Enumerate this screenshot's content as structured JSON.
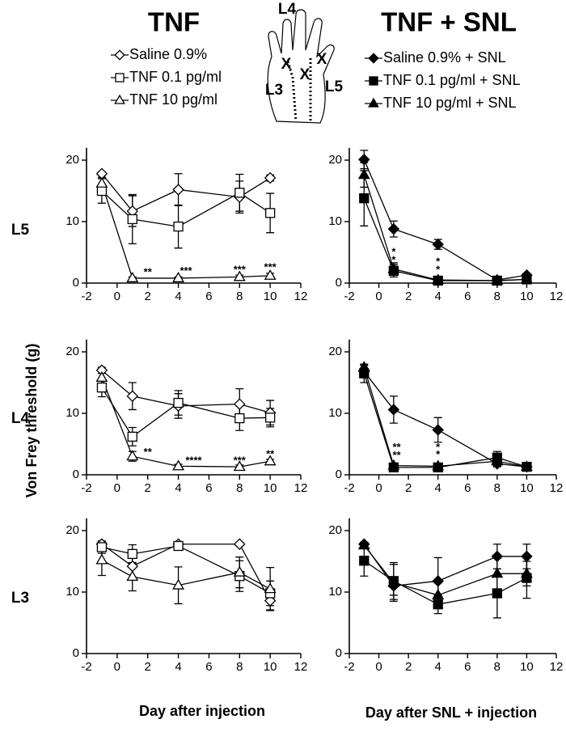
{
  "columns": [
    {
      "title": "TNF",
      "xlabel": "Day after injection",
      "series": [
        {
          "name": "Saline 0.9%",
          "marker": "diamond",
          "fill": "#ffffff"
        },
        {
          "name": "TNF 0.1 pg/ml",
          "marker": "square",
          "fill": "#ffffff"
        },
        {
          "name": "TNF 10 pg/ml",
          "marker": "triangle",
          "fill": "#ffffff"
        }
      ]
    },
    {
      "title": "TNF + SNL",
      "xlabel": "Day after SNL + injection",
      "series": [
        {
          "name": "Saline 0.9% + SNL",
          "marker": "diamond",
          "fill": "#000000"
        },
        {
          "name": "TNF 0.1 pg/ml + SNL",
          "marker": "square",
          "fill": "#000000"
        },
        {
          "name": "TNF 10 pg/ml + SNL",
          "marker": "triangle",
          "fill": "#000000"
        }
      ]
    }
  ],
  "rows": [
    "L5",
    "L4",
    "L3"
  ],
  "ylabel": "Von Frey threshold (g)",
  "paw": {
    "labels": [
      "L4",
      "L3",
      "L5"
    ],
    "marks": [
      "X",
      "X",
      "X"
    ]
  },
  "chart_data": [
    {
      "type": "line",
      "x": [
        -1,
        1,
        4,
        8,
        10
      ],
      "xlim": [
        -2,
        12
      ],
      "xticks": [
        -2,
        0,
        2,
        4,
        6,
        8,
        10,
        12
      ],
      "ylim": [
        0,
        22
      ],
      "yticks": [
        0,
        10,
        20
      ],
      "series": [
        {
          "values": [
            17.8,
            11.7,
            15.2,
            14.0,
            17.1
          ],
          "errors": [
            0.3,
            2.5,
            2.6,
            2.6,
            0.5
          ]
        },
        {
          "values": [
            15.0,
            10.4,
            9.2,
            14.7,
            11.4
          ],
          "errors": [
            2.0,
            4.0,
            3.5,
            3.0,
            3.2
          ]
        },
        {
          "values": [
            16.2,
            0.8,
            0.8,
            1.0,
            1.2
          ],
          "errors": [
            1.0,
            0.2,
            0.2,
            0.3,
            0.4
          ]
        }
      ],
      "annotations": [
        {
          "x": 2,
          "y": 1.7,
          "text": "**"
        },
        {
          "x": 4.5,
          "y": 1.9,
          "text": "***"
        },
        {
          "x": 8,
          "y": 2.1,
          "text": "***"
        },
        {
          "x": 10,
          "y": 2.5,
          "text": "***"
        }
      ]
    },
    {
      "type": "line",
      "x": [
        -1,
        1,
        4,
        8,
        10
      ],
      "xlim": [
        -2,
        12
      ],
      "xticks": [
        -2,
        0,
        2,
        4,
        6,
        8,
        10,
        12
      ],
      "ylim": [
        0,
        22
      ],
      "yticks": [
        0,
        10,
        20
      ],
      "series": [
        {
          "values": [
            20.1,
            8.8,
            6.3,
            0.5,
            1.3
          ],
          "errors": [
            1.5,
            1.3,
            0.8,
            0.2,
            0.3
          ]
        },
        {
          "values": [
            13.8,
            2.0,
            0.4,
            0.4,
            0.6
          ],
          "errors": [
            4.5,
            1.0,
            0.2,
            0.2,
            0.2
          ]
        },
        {
          "values": [
            17.6,
            2.3,
            0.5,
            0.4,
            0.6
          ],
          "errors": [
            2.0,
            1.0,
            0.2,
            0.2,
            0.2
          ]
        }
      ],
      "annotations": [
        {
          "x": 1,
          "y": 5.0,
          "text": "*"
        },
        {
          "x": 1,
          "y": 3.7,
          "text": "*"
        },
        {
          "x": 4,
          "y": 3.4,
          "text": "*"
        },
        {
          "x": 4,
          "y": 2.1,
          "text": "*"
        }
      ]
    },
    {
      "type": "line",
      "x": [
        -1,
        1,
        4,
        8,
        10
      ],
      "xlim": [
        -2,
        12
      ],
      "xticks": [
        -2,
        0,
        2,
        4,
        6,
        8,
        10,
        12
      ],
      "ylim": [
        0,
        22
      ],
      "yticks": [
        0,
        10,
        20
      ],
      "series": [
        {
          "values": [
            17.0,
            12.8,
            11.2,
            11.5,
            10.1
          ],
          "errors": [
            0.5,
            2.2,
            2.0,
            2.5,
            2.0
          ]
        },
        {
          "values": [
            14.2,
            6.2,
            11.7,
            9.2,
            9.3
          ],
          "errors": [
            1.5,
            1.5,
            2.0,
            2.0,
            1.5
          ]
        },
        {
          "values": [
            15.8,
            3.0,
            1.4,
            1.3,
            2.2
          ],
          "errors": [
            1.0,
            0.8,
            0.3,
            0.3,
            0.3
          ]
        }
      ],
      "annotations": [
        {
          "x": 2,
          "y": 3.6,
          "text": "**"
        },
        {
          "x": 5,
          "y": 2.2,
          "text": "****"
        },
        {
          "x": 8,
          "y": 2.2,
          "text": "***"
        },
        {
          "x": 10,
          "y": 3.3,
          "text": "**"
        }
      ]
    },
    {
      "type": "line",
      "x": [
        -1,
        1,
        4,
        8,
        10
      ],
      "xlim": [
        -2,
        12
      ],
      "xticks": [
        -2,
        0,
        2,
        4,
        6,
        8,
        10,
        12
      ],
      "ylim": [
        0,
        22
      ],
      "yticks": [
        0,
        10,
        20
      ],
      "series": [
        {
          "values": [
            16.8,
            10.6,
            7.3,
            1.8,
            1.3
          ],
          "errors": [
            1.0,
            2.2,
            2.0,
            0.5,
            0.3
          ]
        },
        {
          "values": [
            16.5,
            1.2,
            1.2,
            2.8,
            1.3
          ],
          "errors": [
            1.5,
            0.3,
            0.3,
            1.0,
            0.3
          ]
        },
        {
          "values": [
            17.5,
            1.5,
            1.4,
            2.2,
            1.3
          ],
          "errors": [
            0.5,
            0.3,
            0.3,
            0.8,
            0.3
          ]
        }
      ],
      "annotations": [
        {
          "x": 1.2,
          "y": 4.4,
          "text": "**"
        },
        {
          "x": 1.2,
          "y": 3.1,
          "text": "**"
        },
        {
          "x": 4,
          "y": 4.4,
          "text": "*"
        },
        {
          "x": 4,
          "y": 3.2,
          "text": "*"
        }
      ]
    },
    {
      "type": "line",
      "x": [
        -1,
        1,
        4,
        8,
        10
      ],
      "xlim": [
        -2,
        12
      ],
      "xticks": [
        -2,
        0,
        2,
        4,
        6,
        8,
        10,
        12
      ],
      "ylim": [
        0,
        22
      ],
      "yticks": [
        0,
        10,
        20
      ],
      "series": [
        {
          "values": [
            17.8,
            14.2,
            17.8,
            17.8,
            8.6
          ],
          "errors": [
            0.5,
            2.0,
            0.3,
            0.3,
            1.5
          ]
        },
        {
          "values": [
            17.3,
            16.2,
            17.5,
            12.6,
            9.8
          ],
          "errors": [
            1.0,
            1.5,
            0.5,
            2.5,
            2.0
          ]
        },
        {
          "values": [
            15.2,
            12.5,
            11.1,
            13.2,
            10.5
          ],
          "errors": [
            2.5,
            2.3,
            3.0,
            2.5,
            3.5
          ]
        }
      ],
      "annotations": []
    },
    {
      "type": "line",
      "x": [
        -1,
        1,
        4,
        8,
        10
      ],
      "xlim": [
        -2,
        12
      ],
      "xticks": [
        -2,
        0,
        2,
        4,
        6,
        8,
        10,
        12
      ],
      "ylim": [
        0,
        22
      ],
      "yticks": [
        0,
        10,
        20
      ],
      "series": [
        {
          "values": [
            17.8,
            11.0,
            11.8,
            15.8,
            15.8
          ],
          "errors": [
            0.3,
            1.5,
            3.8,
            2.0,
            2.0
          ]
        },
        {
          "values": [
            15.1,
            11.8,
            8.0,
            9.8,
            12.3
          ],
          "errors": [
            2.5,
            3.0,
            1.5,
            4.0,
            3.3
          ]
        },
        {
          "values": [
            17.6,
            11.5,
            9.5,
            13.0,
            13.0
          ],
          "errors": [
            0.5,
            3.0,
            2.0,
            2.5,
            2.0
          ]
        }
      ],
      "annotations": []
    }
  ]
}
